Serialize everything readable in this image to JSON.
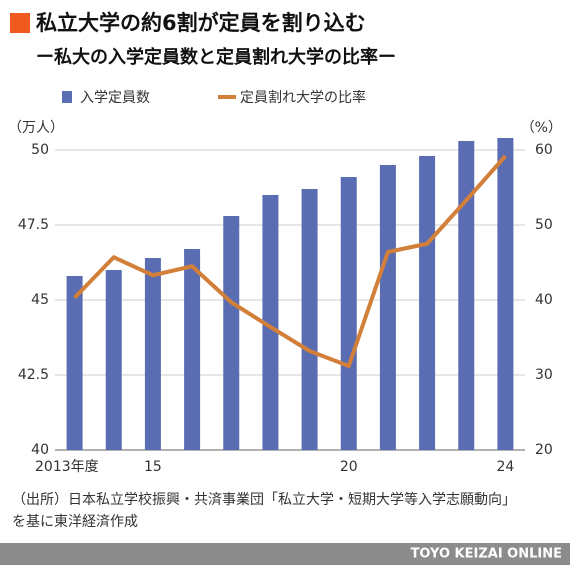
{
  "chart_data": {
    "type": "bar",
    "title": "私立大学の約6割が定員を割り込む",
    "subtitle": "ー私大の入学定員数と定員割れ大学の比率ー",
    "y_label": "（万人）",
    "y2_label": "（%）",
    "categories": [
      "2013年度",
      null,
      "15",
      null,
      null,
      null,
      null,
      "20",
      null,
      null,
      null,
      "24"
    ],
    "series": [
      {
        "name": "入学定員数",
        "type": "bar",
        "color": "#5a6db3",
        "values": [
          45.8,
          46.0,
          46.4,
          46.7,
          47.8,
          48.5,
          48.7,
          49.1,
          49.5,
          49.8,
          50.3,
          50.4
        ]
      },
      {
        "name": "定員割れ大学の比率",
        "type": "line",
        "axis": "y2",
        "color": "#d27f3a",
        "values": [
          40.3,
          45.7,
          43.3,
          44.5,
          39.7,
          36.4,
          33.2,
          31.2,
          46.4,
          47.5,
          53.3,
          59.2
        ]
      }
    ],
    "ylim": [
      40,
      50.6
    ],
    "yticks": [
      40,
      42.5,
      45,
      47.5,
      50
    ],
    "y2lim": [
      20,
      62.4
    ],
    "y2ticks": [
      20,
      30,
      40,
      50,
      60
    ],
    "grid": true
  },
  "source": [
    "（出所）日本私立学校振興・共済事業団「私立大学・短期大学等入学志願動向」",
    "を基に東洋経済作成"
  ],
  "footer": "TOYO KEIZAI ONLINE"
}
